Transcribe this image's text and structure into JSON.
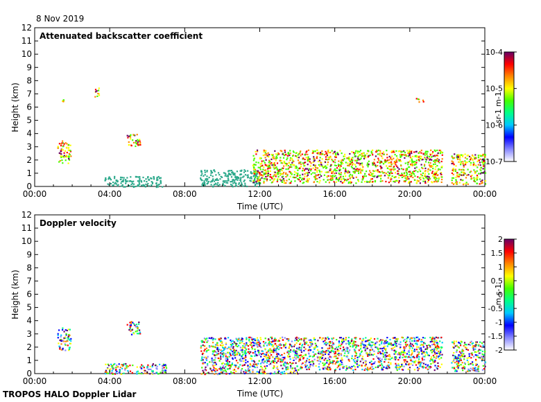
{
  "header": {
    "date": "8 Nov 2019"
  },
  "footer": {
    "label": "TROPOS HALO Doppler Lidar"
  },
  "colors": {
    "backscatter_scale": [
      "#ffffff",
      "#8888ff",
      "#0000ff",
      "#00c8ff",
      "#00ff88",
      "#44ff00",
      "#ffff00",
      "#ff8800",
      "#ff0000",
      "#660066"
    ],
    "velocity_scale": [
      "#ffffff",
      "#8888ff",
      "#0000ff",
      "#00c8ff",
      "#00ff88",
      "#44ff00",
      "#ffff00",
      "#ff8800",
      "#ff0000",
      "#660066"
    ],
    "aerosol_layer": "#2aa88a"
  },
  "chart_data": [
    {
      "type": "heatmap",
      "title": "Attenuated backscatter coefficient",
      "xlabel": "Time (UTC)",
      "ylabel": "Height (km)",
      "xlim": [
        0,
        24
      ],
      "ylim": [
        0,
        12
      ],
      "x_ticks": [
        "00:00",
        "04:00",
        "08:00",
        "12:00",
        "16:00",
        "20:00",
        "00:00"
      ],
      "y_ticks": [
        "0",
        "1",
        "2",
        "3",
        "4",
        "5",
        "6",
        "7",
        "8",
        "9",
        "10",
        "11",
        "12"
      ],
      "colorbar": {
        "unit_label": "sr-1 m-1",
        "scale": "log",
        "tick_labels": [
          "10-7",
          "10-6",
          "10-5",
          "10-4"
        ],
        "range": [
          1e-07,
          0.0001
        ]
      },
      "features": [
        {
          "kind": "elevated-cloud",
          "t": [
            1.2,
            1.9
          ],
          "h": [
            1.8,
            3.5
          ]
        },
        {
          "kind": "elevated-cloud",
          "t": [
            1.35,
            1.55
          ],
          "h": [
            6.4,
            6.6
          ]
        },
        {
          "kind": "elevated-cloud",
          "t": [
            3.1,
            3.4
          ],
          "h": [
            6.8,
            7.5
          ]
        },
        {
          "kind": "elevated-cloud",
          "t": [
            4.9,
            5.6
          ],
          "h": [
            3.0,
            4.0
          ]
        },
        {
          "kind": "elevated-cloud",
          "t": [
            20.3,
            20.7
          ],
          "h": [
            6.4,
            6.7
          ]
        },
        {
          "kind": "aerosol-layer",
          "t": [
            3.7,
            6.8
          ],
          "h": [
            0,
            0.8
          ]
        },
        {
          "kind": "aerosol-layer",
          "t": [
            8.8,
            12.0
          ],
          "h": [
            0,
            1.3
          ]
        },
        {
          "kind": "boundary-layer-clouds",
          "t": [
            11.6,
            21.7
          ],
          "h": [
            0.3,
            2.8
          ]
        },
        {
          "kind": "boundary-layer-clouds",
          "t": [
            22.2,
            24.0
          ],
          "h": [
            0.2,
            2.5
          ]
        }
      ]
    },
    {
      "type": "heatmap",
      "title": "Doppler velocity",
      "xlabel": "Time (UTC)",
      "ylabel": "Height (km)",
      "xlim": [
        0,
        24
      ],
      "ylim": [
        0,
        12
      ],
      "x_ticks": [
        "00:00",
        "04:00",
        "08:00",
        "12:00",
        "16:00",
        "20:00",
        "00:00"
      ],
      "y_ticks": [
        "0",
        "1",
        "2",
        "3",
        "4",
        "5",
        "6",
        "7",
        "8",
        "9",
        "10",
        "11",
        "12"
      ],
      "colorbar": {
        "unit_label": "m s-1",
        "scale": "linear",
        "tick_labels": [
          "-2",
          "-1.5",
          "-1",
          "-0.5",
          "0",
          "0.5",
          "1",
          "1.5",
          "2"
        ],
        "range": [
          -2,
          2
        ]
      },
      "features": [
        {
          "kind": "elevated-cloud",
          "t": [
            1.2,
            1.9
          ],
          "h": [
            1.8,
            3.5
          ]
        },
        {
          "kind": "elevated-cloud",
          "t": [
            4.9,
            5.6
          ],
          "h": [
            3.0,
            4.0
          ]
        },
        {
          "kind": "boundary-layer-turbulence",
          "t": [
            3.7,
            7.0
          ],
          "h": [
            0,
            0.8
          ]
        },
        {
          "kind": "boundary-layer-turbulence",
          "t": [
            8.8,
            14.0
          ],
          "h": [
            0,
            2.8
          ]
        },
        {
          "kind": "boundary-layer-clouds",
          "t": [
            14.0,
            21.7
          ],
          "h": [
            0.3,
            2.8
          ]
        },
        {
          "kind": "boundary-layer-clouds",
          "t": [
            22.2,
            24.0
          ],
          "h": [
            0.2,
            2.5
          ]
        }
      ]
    }
  ]
}
